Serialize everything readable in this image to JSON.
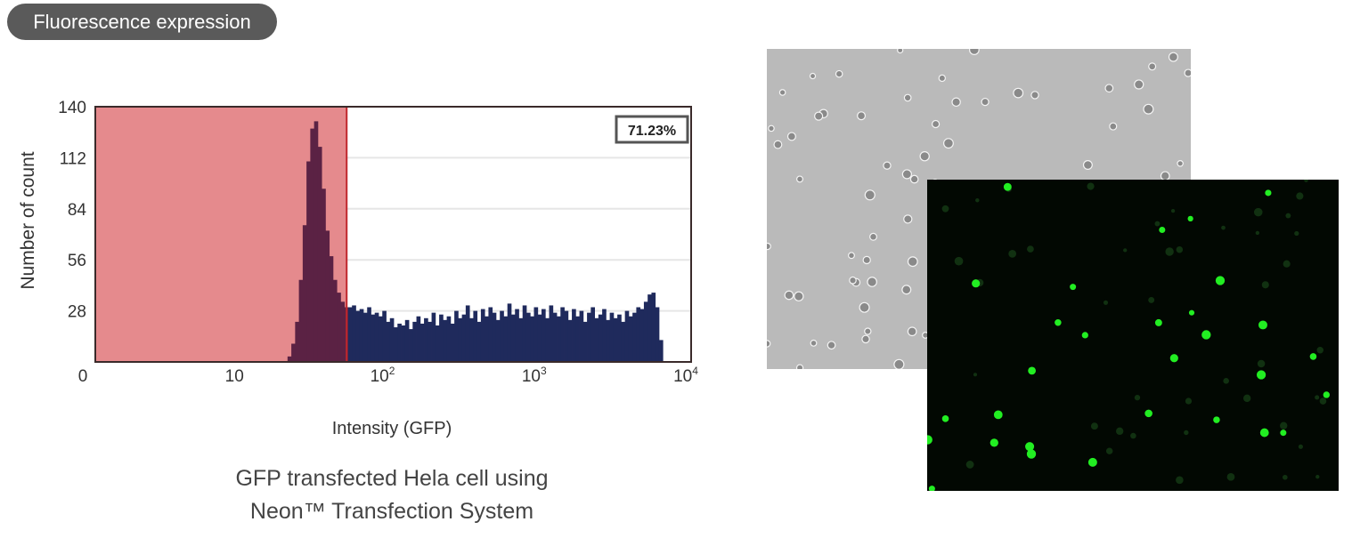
{
  "header": {
    "title": "Fluorescence expression"
  },
  "chart_data": {
    "type": "bar",
    "title": "",
    "xlabel": "Intensity (GFP)",
    "ylabel": "Number of count",
    "x_scale": "log10",
    "xlim_log10": [
      0,
      4
    ],
    "ylim": [
      0,
      140
    ],
    "yticks": [
      28,
      56,
      84,
      112,
      140
    ],
    "xticks": [
      {
        "log10": 0,
        "label": "0",
        "sup": ""
      },
      {
        "log10": 1,
        "label": "10",
        "sup": ""
      },
      {
        "log10": 2,
        "label": "10",
        "sup": "2"
      },
      {
        "log10": 3,
        "label": "10",
        "sup": "3"
      },
      {
        "log10": 4,
        "label": "10",
        "sup": "4"
      }
    ],
    "grid": true,
    "gate_log10": 1.74,
    "gate_percent_label": "71.23%",
    "bin_start_log10": 1.35,
    "bin_width_log10": 0.025,
    "values": [
      3,
      10,
      22,
      45,
      75,
      110,
      128,
      132,
      118,
      95,
      72,
      58,
      45,
      38,
      33,
      30,
      30,
      31,
      28,
      29,
      27,
      30,
      26,
      27,
      25,
      28,
      22,
      24,
      19,
      21,
      20,
      23,
      18,
      22,
      25,
      21,
      24,
      22,
      27,
      20,
      26,
      23,
      25,
      21,
      28,
      24,
      26,
      31,
      24,
      28,
      22,
      29,
      25,
      30,
      27,
      23,
      28,
      25,
      32,
      26,
      29,
      24,
      31,
      27,
      25,
      30,
      26,
      29,
      24,
      31,
      27,
      25,
      30,
      28,
      23,
      29,
      25,
      28,
      22,
      27,
      30,
      24,
      26,
      29,
      23,
      27,
      24,
      26,
      22,
      28,
      25,
      27,
      30,
      29,
      33,
      37,
      38,
      30,
      12
    ],
    "colors": {
      "gated_region": "#e58a8d",
      "gate_line": "#c0272d",
      "bars": "#1f2a5c",
      "bars_in_gate": "#5b2244"
    }
  },
  "caption": {
    "line1": "GFP transfected Hela cell using",
    "line2": "Neon™ Transfection System"
  }
}
